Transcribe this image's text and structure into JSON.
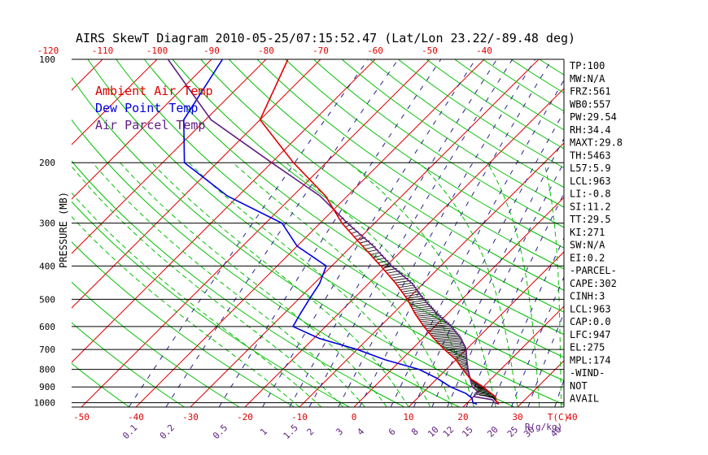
{
  "chart_data": {
    "type": "skewt",
    "title": "AIRS SkewT Diagram 2010-05-25/07:15:52.47 (Lat/Lon 23.22/-89.48 deg)",
    "ylabel": "PRESSURE (MB)",
    "xlabel_right": "T(C)",
    "mixing_ratio_unit": "R(g/kg)",
    "pressure_ticks": [
      100,
      200,
      300,
      400,
      500,
      600,
      700,
      800,
      900,
      1000
    ],
    "bottom_temp_ticks": [
      -50,
      -40,
      -30,
      -20,
      -10,
      0,
      10,
      20,
      30,
      40
    ],
    "top_temp_ticks": [
      -120,
      -110,
      -100,
      -90,
      -80,
      -70,
      -60,
      -50,
      -40
    ],
    "mixing_ratio_labels": [
      "0.1",
      "0.2",
      "0.5",
      "1",
      "1.5",
      "2",
      "3",
      "4",
      "6",
      "8",
      "10",
      "12",
      "15",
      "20",
      "25",
      "30",
      "40"
    ],
    "ylim": [
      1030,
      100
    ],
    "legend": [
      {
        "name": "Ambient Air Temp",
        "color": "#e00000"
      },
      {
        "name": "Dew Point Temp",
        "color": "#0000e0"
      },
      {
        "name": "Air Parcel Temp",
        "color": "#602080"
      }
    ],
    "series": [
      {
        "name": "Ambient Air Temp",
        "color": "#e00000",
        "points": [
          [
            100,
            -76
          ],
          [
            150,
            -70
          ],
          [
            200,
            -56
          ],
          [
            250,
            -44
          ],
          [
            300,
            -36
          ],
          [
            350,
            -28
          ],
          [
            400,
            -21
          ],
          [
            450,
            -15
          ],
          [
            500,
            -10
          ],
          [
            550,
            -6
          ],
          [
            600,
            -2
          ],
          [
            650,
            2
          ],
          [
            700,
            6
          ],
          [
            750,
            10
          ],
          [
            800,
            13
          ],
          [
            850,
            16
          ],
          [
            900,
            20
          ],
          [
            930,
            22
          ],
          [
            960,
            24
          ],
          [
            990,
            25
          ],
          [
            1010,
            26
          ]
        ]
      },
      {
        "name": "Dew Point Temp",
        "color": "#0000e0",
        "points": [
          [
            100,
            -88
          ],
          [
            150,
            -84
          ],
          [
            200,
            -76
          ],
          [
            250,
            -62
          ],
          [
            300,
            -47
          ],
          [
            350,
            -40
          ],
          [
            400,
            -31
          ],
          [
            450,
            -29
          ],
          [
            500,
            -28
          ],
          [
            550,
            -27
          ],
          [
            600,
            -26
          ],
          [
            650,
            -19
          ],
          [
            700,
            -10
          ],
          [
            750,
            -3
          ],
          [
            800,
            5
          ],
          [
            850,
            10
          ],
          [
            900,
            14
          ],
          [
            940,
            18
          ],
          [
            970,
            20
          ],
          [
            1000,
            21
          ],
          [
            1010,
            22
          ]
        ]
      },
      {
        "name": "Air Parcel Temp",
        "color": "#602080",
        "points": [
          [
            100,
            -98
          ],
          [
            150,
            -79
          ],
          [
            200,
            -60
          ],
          [
            250,
            -45
          ],
          [
            300,
            -35
          ],
          [
            350,
            -26
          ],
          [
            400,
            -19
          ],
          [
            450,
            -12
          ],
          [
            500,
            -7
          ],
          [
            550,
            -2
          ],
          [
            600,
            3
          ],
          [
            650,
            7
          ],
          [
            700,
            10
          ],
          [
            750,
            12
          ],
          [
            800,
            14
          ],
          [
            850,
            16
          ],
          [
            900,
            18
          ],
          [
            930,
            20
          ],
          [
            960,
            20
          ],
          [
            980,
            24
          ],
          [
            1000,
            25
          ],
          [
            1010,
            26
          ]
        ]
      }
    ],
    "indices": [
      "TP:100",
      "MW:N/A",
      "FRZ:561",
      "WB0:557",
      "PW:29.54",
      "RH:34.4",
      "MAXT:29.8",
      "TH:5463",
      "L57:5.9",
      "LCL:963",
      "LI:-0.8",
      "SI:11.2",
      "TT:29.5",
      "KI:271",
      "SW:N/A",
      "EI:0.2",
      "-PARCEL-",
      "CAPE:302",
      "CINH:3",
      "LCL:963",
      "CAP:0.0",
      "LFC:947",
      "EL:275",
      "MPL:174",
      "-WIND-",
      "NOT",
      "AVAIL"
    ],
    "colors": {
      "isotherm": "#e00000",
      "dry_adiabat": "#00c000",
      "moist_adiabat": "#00c000",
      "mixing_ratio": "#2a1f8f",
      "axis_label": "#e00000",
      "mixing_label": "#602080",
      "isobar": "#000000"
    }
  }
}
